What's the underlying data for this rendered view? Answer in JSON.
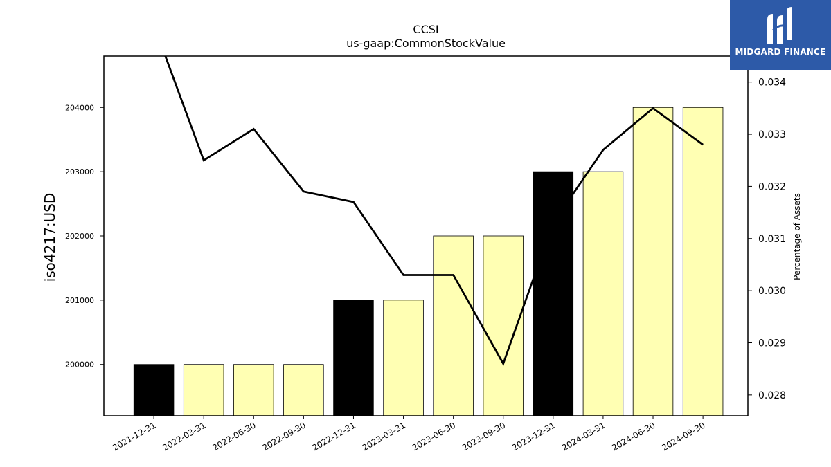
{
  "chart_data": {
    "type": "bar",
    "title": "CCSI",
    "subtitle": "us-gaap:CommonStockValue",
    "ylabel": "iso4217:USD",
    "y2label": "Percentage of Assets",
    "categories": [
      "2021-12-31",
      "2022-03-31",
      "2022-06-30",
      "2022-09-30",
      "2022-12-31",
      "2023-03-31",
      "2023-06-30",
      "2023-09-30",
      "2023-12-31",
      "2024-03-31",
      "2024-06-30",
      "2024-09-30"
    ],
    "bars": {
      "values": [
        200000,
        200000,
        200000,
        200000,
        201000,
        201000,
        202000,
        202000,
        203000,
        203000,
        204000,
        204000
      ],
      "colors": [
        "#000000",
        "#ffffb3",
        "#ffffb3",
        "#ffffb3",
        "#000000",
        "#ffffb3",
        "#ffffb3",
        "#ffffb3",
        "#000000",
        "#ffffb3",
        "#ffffb3",
        "#ffffb3"
      ]
    },
    "line": {
      "values": [
        0.0351,
        0.0325,
        0.0331,
        0.0319,
        0.0317,
        0.0303,
        0.0303,
        0.0286,
        0.0313,
        0.0327,
        0.0335,
        0.0328
      ],
      "color": "#000000"
    },
    "ylim": [
      199200,
      204800
    ],
    "yticks": [
      200000,
      201000,
      202000,
      203000,
      204000
    ],
    "y2lim": [
      0.0276,
      0.0345
    ],
    "y2ticks": [
      0.028,
      0.029,
      0.03,
      0.031,
      0.032,
      0.033,
      0.034
    ],
    "grid": false
  },
  "logo": {
    "text": "MIDGARD FINANCE"
  }
}
